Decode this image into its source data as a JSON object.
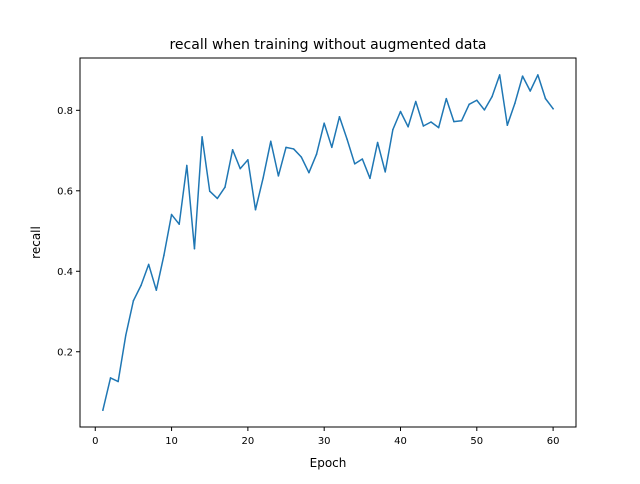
{
  "chart_data": {
    "type": "line",
    "title": "recall when training without augmented data",
    "xlabel": "Epoch",
    "ylabel": "recall",
    "xlim": [
      -2,
      63
    ],
    "ylim": [
      0.013,
      0.93
    ],
    "xticks": [
      0,
      10,
      20,
      30,
      40,
      50,
      60
    ],
    "yticks": [
      0.2,
      0.4,
      0.6,
      0.8
    ],
    "xtick_labels": [
      "0",
      "10",
      "20",
      "30",
      "40",
      "50",
      "60"
    ],
    "ytick_labels": [
      "0.2",
      "0.4",
      "0.6",
      "0.8"
    ],
    "grid": false,
    "line_color": "#1f77b4",
    "series": [
      {
        "x": [
          1,
          2,
          3,
          4,
          5,
          6,
          7,
          8,
          9,
          10,
          11,
          12,
          13,
          14,
          15,
          16,
          17,
          18,
          19,
          20,
          21,
          22,
          23,
          24,
          25,
          26,
          27,
          28,
          29,
          30,
          31,
          32,
          33,
          34,
          35,
          36,
          37,
          38,
          39,
          40,
          41,
          42,
          43,
          44,
          45,
          46,
          47,
          48,
          49,
          50,
          51,
          52,
          53,
          54,
          55,
          56,
          57,
          58,
          59,
          60
        ],
        "y": [
          0.055,
          0.135,
          0.126,
          0.241,
          0.327,
          0.365,
          0.417,
          0.353,
          0.44,
          0.541,
          0.517,
          0.663,
          0.456,
          0.734,
          0.599,
          0.581,
          0.609,
          0.702,
          0.655,
          0.677,
          0.553,
          0.632,
          0.723,
          0.637,
          0.708,
          0.704,
          0.684,
          0.645,
          0.691,
          0.768,
          0.708,
          0.784,
          0.728,
          0.667,
          0.679,
          0.631,
          0.72,
          0.647,
          0.752,
          0.797,
          0.759,
          0.822,
          0.761,
          0.771,
          0.757,
          0.829,
          0.772,
          0.774,
          0.815,
          0.825,
          0.801,
          0.834,
          0.888,
          0.763,
          0.818,
          0.885,
          0.848,
          0.888,
          0.829,
          0.804
        ]
      }
    ]
  }
}
